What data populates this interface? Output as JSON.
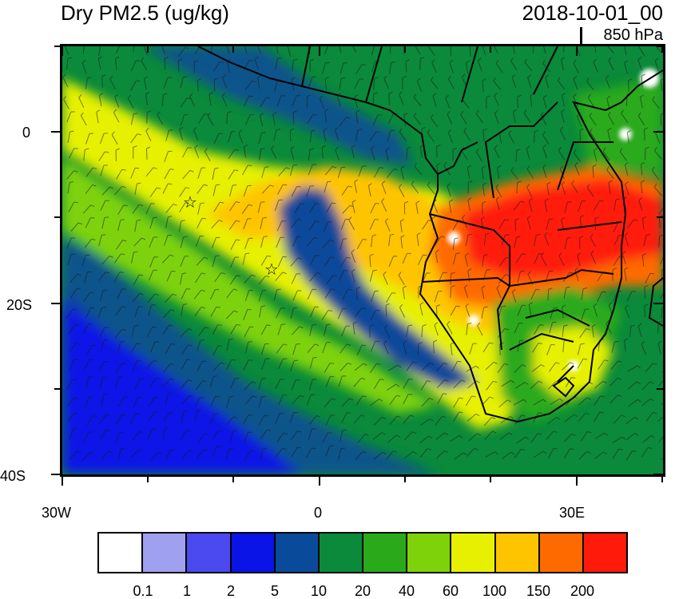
{
  "title": "Dry PM2.5 (ug/kg)",
  "datetime": "2018-10-01_00",
  "level": "850 hPa",
  "axes": {
    "x_labels": [
      "30W",
      "0",
      "30E"
    ],
    "y_labels": [
      "0",
      "20S",
      "40S"
    ]
  },
  "colorbar": {
    "colors": [
      "#ffffff",
      "#a0a0f0",
      "#4a4af0",
      "#0a14e6",
      "#0a4a9a",
      "#0a8a3a",
      "#2aaa1a",
      "#7ed20a",
      "#e6f000",
      "#ffc400",
      "#ff6a00",
      "#ff1a0a"
    ],
    "labels": [
      "0.1",
      "1",
      "2",
      "5",
      "10",
      "20",
      "40",
      "60",
      "100",
      "150",
      "200"
    ]
  },
  "markers": [
    {
      "name": "star-marker",
      "symbol": "☆"
    },
    {
      "name": "star-marker",
      "symbol": "☆"
    }
  ]
}
